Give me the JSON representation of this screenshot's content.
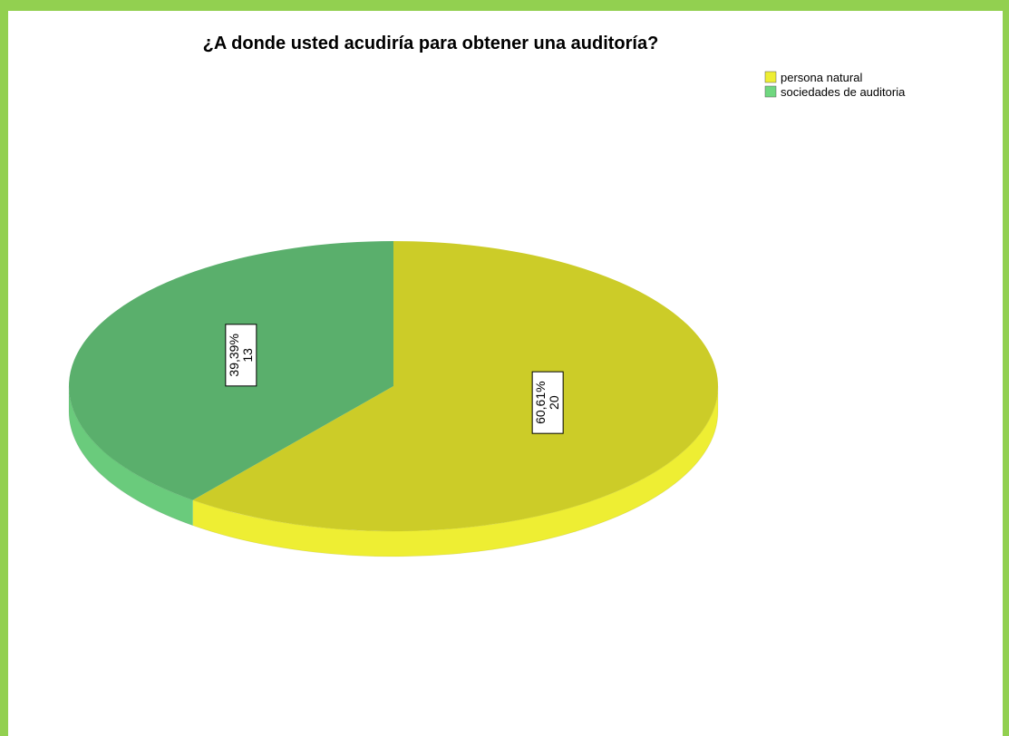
{
  "chart_data": {
    "type": "pie",
    "style": "3d",
    "title": "¿A donde usted acudiría para obtener una auditoría?",
    "legend_position": "top-right",
    "slices": [
      {
        "name": "persona natural",
        "value": 20,
        "percent_label": "60,61%",
        "count_label": "20",
        "color": "#cccc28",
        "side_color": "#eeee33",
        "legend_color": "#eeee33"
      },
      {
        "name": "sociedades de auditoria",
        "value": 13,
        "percent_label": "39,39%",
        "count_label": "13",
        "color": "#5aaf6c",
        "side_color": "#6acb7c",
        "legend_color": "#6fd77f"
      }
    ]
  },
  "frame": {
    "border_color": "#92d050"
  }
}
